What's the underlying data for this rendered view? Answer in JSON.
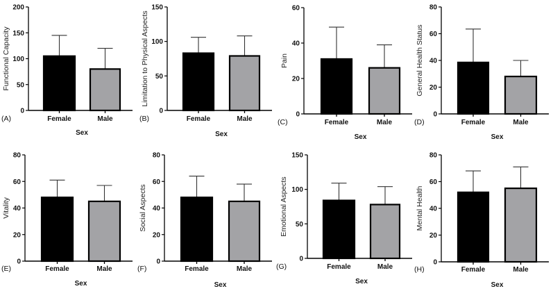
{
  "colors": {
    "female": "#000000",
    "male": "#a3a3a6",
    "axis": "#000000",
    "error": "#333333"
  },
  "chart_data": [
    {
      "type": "bar",
      "panel": "(A)",
      "ylabel": "Functional Capacity",
      "xlabel": "Sex",
      "categories": [
        "Female",
        "Male"
      ],
      "values": [
        105,
        80
      ],
      "error_upper": [
        145,
        120
      ],
      "ylim": [
        0,
        200
      ],
      "yticks": [
        0,
        50,
        100,
        150,
        200
      ],
      "grid": false
    },
    {
      "type": "bar",
      "panel": "(B)",
      "ylabel": "Limitation to Physical Aspects",
      "xlabel": "Sex",
      "categories": [
        "Female",
        "Male"
      ],
      "values": [
        83,
        79
      ],
      "error_upper": [
        106,
        108
      ],
      "ylim": [
        0,
        150
      ],
      "yticks": [
        0,
        50,
        100,
        150
      ],
      "grid": false
    },
    {
      "type": "bar",
      "panel": "(C)",
      "ylabel": "Pain",
      "xlabel": "Sex",
      "categories": [
        "Female",
        "Male"
      ],
      "values": [
        31,
        26
      ],
      "error_upper": [
        49,
        39
      ],
      "ylim": [
        0,
        60
      ],
      "yticks": [
        0,
        20,
        40,
        60
      ],
      "grid": false
    },
    {
      "type": "bar",
      "panel": "(D)",
      "ylabel": "General Health Status",
      "xlabel": "Sex",
      "categories": [
        "Female",
        "Male"
      ],
      "values": [
        38.5,
        28
      ],
      "error_upper": [
        63.5,
        40
      ],
      "ylim": [
        0,
        80
      ],
      "yticks": [
        0,
        20,
        40,
        60,
        80
      ],
      "grid": false
    },
    {
      "type": "bar",
      "panel": "(E)",
      "ylabel": "Vitality",
      "xlabel": "Sex",
      "categories": [
        "Female",
        "Male"
      ],
      "values": [
        48,
        45
      ],
      "error_upper": [
        61,
        57
      ],
      "ylim": [
        0,
        80
      ],
      "yticks": [
        0,
        20,
        40,
        60,
        80
      ],
      "grid": false
    },
    {
      "type": "bar",
      "panel": "(F)",
      "ylabel": "Social Aspects",
      "xlabel": "Sex",
      "categories": [
        "Female",
        "Male"
      ],
      "values": [
        48,
        45
      ],
      "error_upper": [
        64,
        58
      ],
      "ylim": [
        0,
        80
      ],
      "yticks": [
        0,
        20,
        40,
        60,
        80
      ],
      "grid": false
    },
    {
      "type": "bar",
      "panel": "(G)",
      "ylabel": "Emotional Aspects",
      "xlabel": "Sex",
      "categories": [
        "Female",
        "Male"
      ],
      "values": [
        84,
        78
      ],
      "error_upper": [
        109,
        104
      ],
      "ylim": [
        0,
        150
      ],
      "yticks": [
        0,
        50,
        100,
        150
      ],
      "grid": false
    },
    {
      "type": "bar",
      "panel": "(H)",
      "ylabel": "Mental Health",
      "xlabel": "Sex",
      "categories": [
        "Female",
        "Male"
      ],
      "values": [
        52,
        55
      ],
      "error_upper": [
        68,
        71
      ],
      "ylim": [
        0,
        80
      ],
      "yticks": [
        0,
        20,
        40,
        60,
        80
      ],
      "grid": false
    }
  ]
}
